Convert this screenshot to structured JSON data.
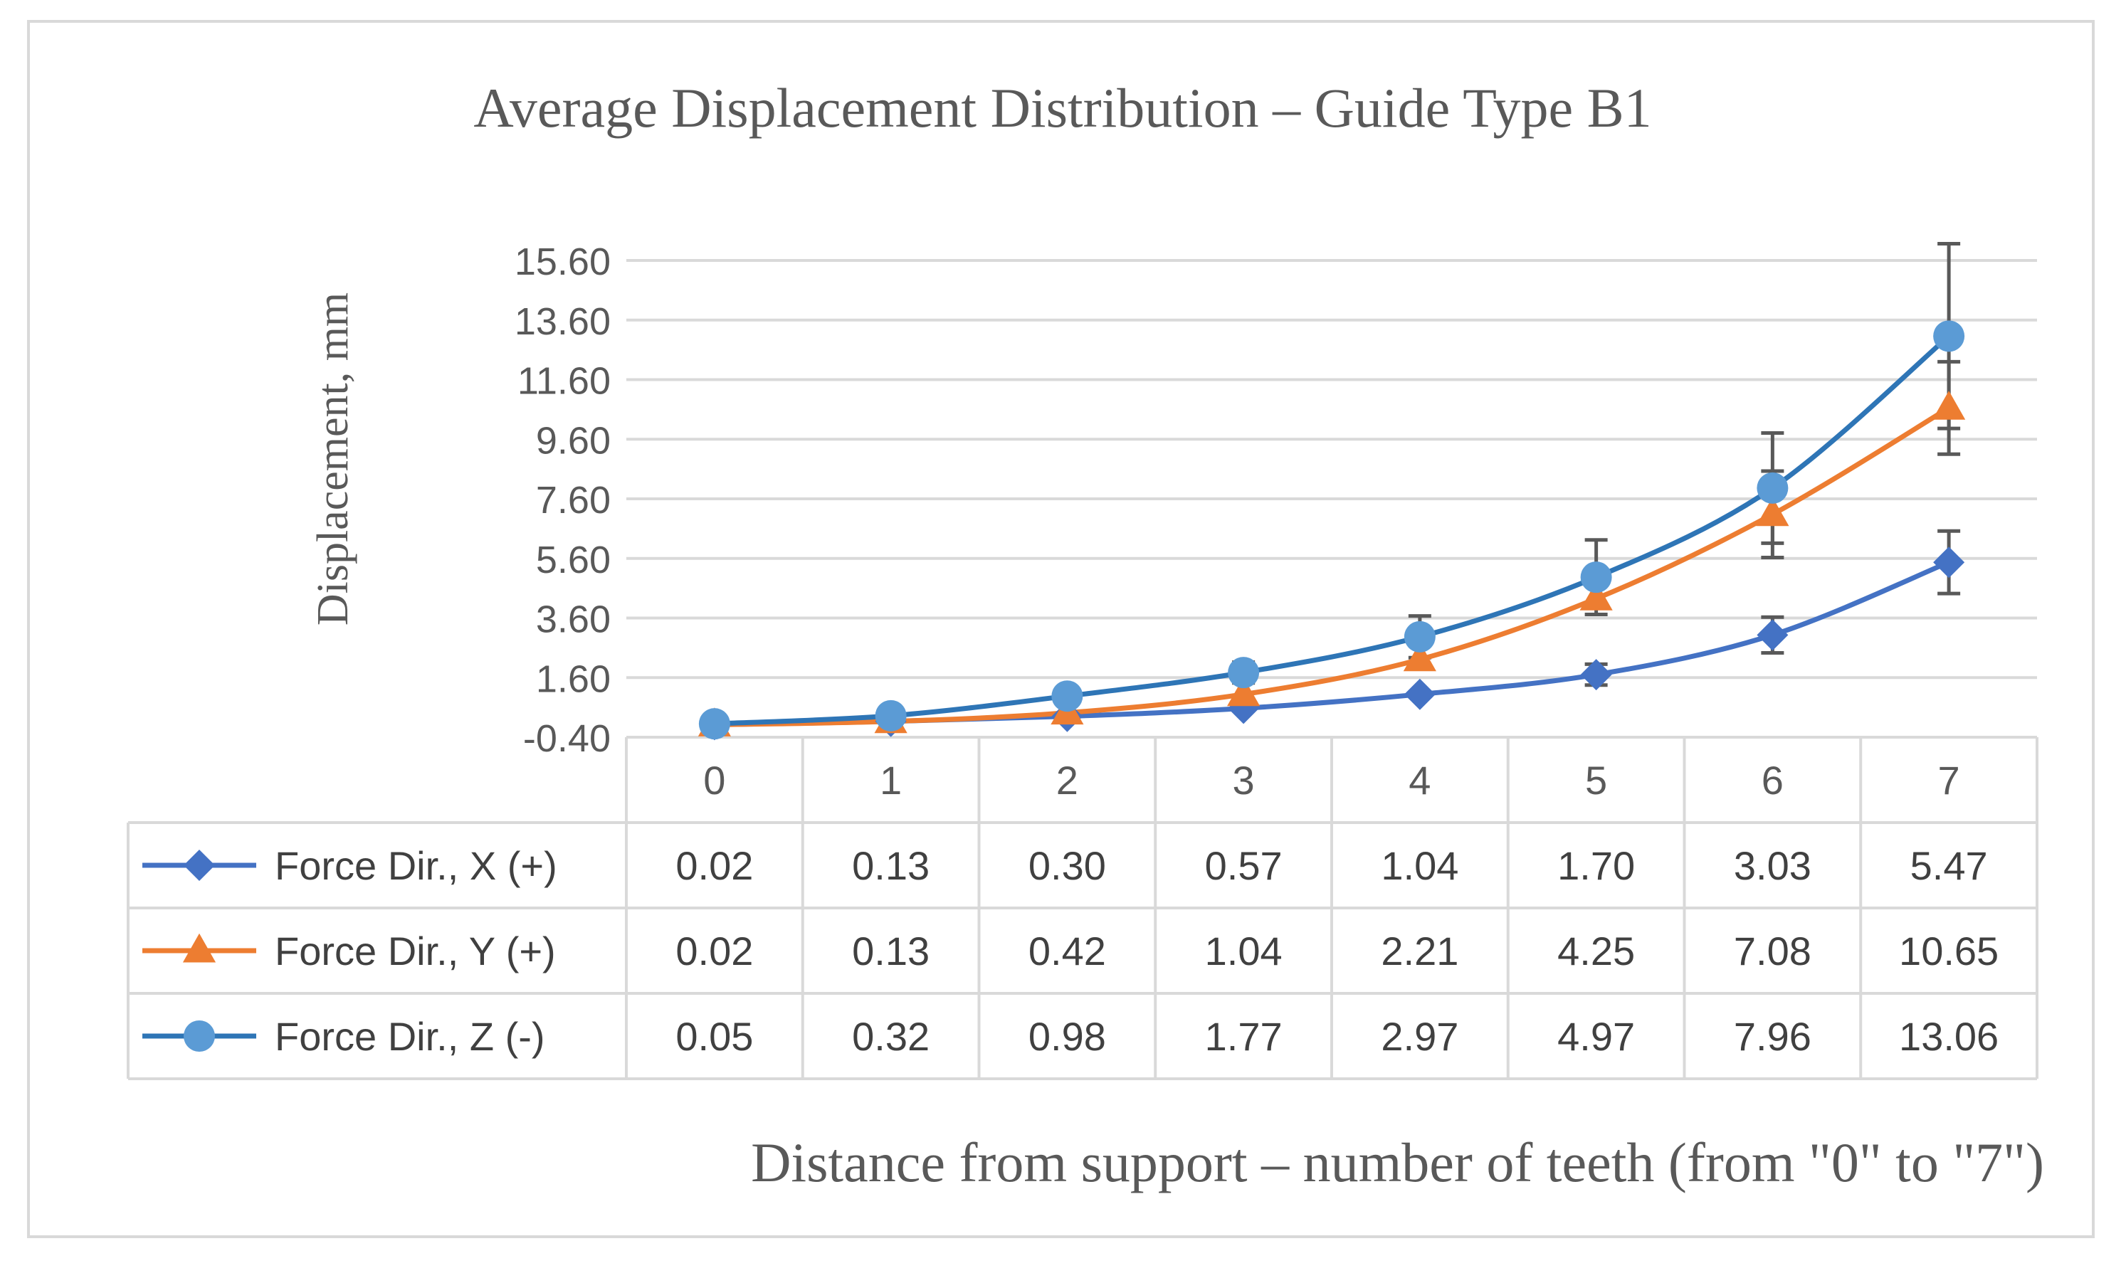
{
  "chart_data": {
    "type": "line",
    "title": "Average Displacement Distribution – Guide Type B1",
    "xlabel": "Distance from support – number of teeth (from \"0\" to \"7\")",
    "ylabel": "Displacement, mm",
    "categories": [
      "0",
      "1",
      "2",
      "3",
      "4",
      "5",
      "6",
      "7"
    ],
    "y_ticks": [
      "-0.40",
      "1.60",
      "3.60",
      "5.60",
      "7.60",
      "9.60",
      "11.60",
      "13.60",
      "15.60"
    ],
    "ylim": [
      -0.4,
      15.6
    ],
    "grid": true,
    "legend": "data-table",
    "series": [
      {
        "name": "Force Dir., X (+)",
        "marker": "diamond",
        "color": "#4472c4",
        "values": [
          0.02,
          0.13,
          0.3,
          0.57,
          1.04,
          1.7,
          3.03,
          5.47
        ],
        "labels": [
          "0.02",
          "0.13",
          "0.30",
          "0.57",
          "1.04",
          "1.70",
          "3.03",
          "5.47"
        ],
        "error": [
          0,
          0,
          0,
          0,
          0,
          0.35,
          0.6,
          1.05
        ]
      },
      {
        "name": "Force Dir., Y (+)",
        "marker": "triangle",
        "color": "#ed7d31",
        "values": [
          0.02,
          0.13,
          0.42,
          1.04,
          2.21,
          4.25,
          7.08,
          10.65
        ],
        "labels": [
          "0.02",
          "0.13",
          "0.42",
          "1.04",
          "2.21",
          "4.25",
          "7.08",
          "10.65"
        ],
        "error": [
          0,
          0,
          0,
          0,
          0,
          0,
          1.45,
          1.55
        ]
      },
      {
        "name": "Force Dir., Z (-)",
        "marker": "circle",
        "color": "#2e75b6",
        "marker_color": "#5b9bd5",
        "values": [
          0.05,
          0.32,
          0.98,
          1.77,
          2.97,
          4.97,
          7.96,
          13.06
        ],
        "labels": [
          "0.05",
          "0.32",
          "0.98",
          "1.77",
          "2.97",
          "4.97",
          "7.96",
          "13.06"
        ],
        "error": [
          0,
          0,
          0,
          0.35,
          0.7,
          1.25,
          1.85,
          3.1
        ]
      }
    ]
  }
}
